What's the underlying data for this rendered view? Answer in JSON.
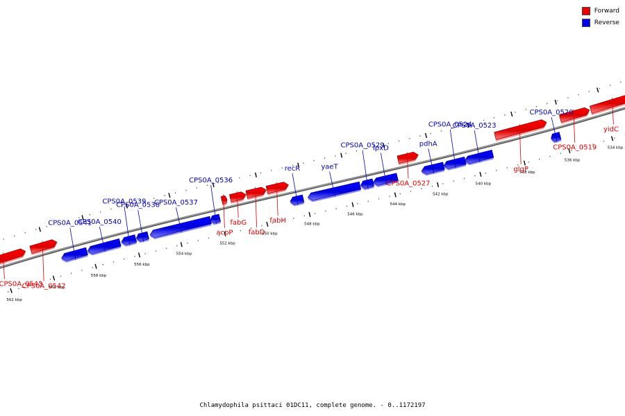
{
  "legend": {
    "forward_label": "Forward",
    "reverse_label": "Reverse",
    "forward_color": "#ee0000",
    "reverse_color": "#0000ee"
  },
  "caption": "Chlamydophila psittaci 01DC11, complete genome. - 0..1172197",
  "ticks": [
    {
      "label": "534 kbp",
      "t": 0.948
    },
    {
      "label": "536 kbp",
      "t": 0.883
    },
    {
      "label": "538 kbp",
      "t": 0.815
    },
    {
      "label": "540 kbp",
      "t": 0.748
    },
    {
      "label": "542 kbp",
      "t": 0.683
    },
    {
      "label": "544 kbp",
      "t": 0.618
    },
    {
      "label": "546 kbp",
      "t": 0.553
    },
    {
      "label": "548 kbp",
      "t": 0.487
    },
    {
      "label": "550 kbp",
      "t": 0.422
    },
    {
      "label": "552 kbp",
      "t": 0.357
    },
    {
      "label": "554 kbp",
      "t": 0.29
    },
    {
      "label": "556 kbp",
      "t": 0.225
    },
    {
      "label": "558 kbp",
      "t": 0.158
    },
    {
      "label": "560 kbp",
      "t": 0.093
    },
    {
      "label": "562 kbp",
      "t": 0.027
    }
  ],
  "genes": {
    "reverse": [
      {
        "name": "CPS0A_0520",
        "t0": 0.862,
        "t1": 0.876
      },
      {
        "name": "CPS0A_0523",
        "t0": 0.73,
        "t1": 0.773
      },
      {
        "name": "CPS0A_0524",
        "t0": 0.698,
        "t1": 0.731
      },
      {
        "name": "pdhA",
        "t0": 0.664,
        "t1": 0.698
      },
      {
        "name": "lpxD",
        "t0": 0.59,
        "t1": 0.627
      },
      {
        "name": "CPS0A_0529",
        "t0": 0.571,
        "t1": 0.59
      },
      {
        "name": "yaeT",
        "t0": 0.49,
        "t1": 0.57
      },
      {
        "name": "recR",
        "t0": 0.463,
        "t1": 0.483
      },
      {
        "name": "CPS0A_0536",
        "t0": 0.341,
        "t1": 0.355
      },
      {
        "name": "CPS0A_0537",
        "t0": 0.248,
        "t1": 0.341
      },
      {
        "name": "CPS0A_0538",
        "t0": 0.227,
        "t1": 0.245
      },
      {
        "name": "CPS0A_0539",
        "t0": 0.204,
        "t1": 0.226
      },
      {
        "name": "CPS0A_0540",
        "t0": 0.152,
        "t1": 0.202
      },
      {
        "name": "CPS0A_0541",
        "t0": 0.112,
        "t1": 0.151
      }
    ],
    "forward": [
      {
        "name": "yidC",
        "t0": 0.93,
        "t1": 1.01
      },
      {
        "name": "CPS0A_0519",
        "t0": 0.883,
        "t1": 0.928
      },
      {
        "name": "glgP",
        "t0": 0.783,
        "t1": 0.862
      },
      {
        "name": "CPS0A_0527",
        "t0": 0.634,
        "t1": 0.665
      },
      {
        "name": "fabH",
        "t0": 0.433,
        "t1": 0.466
      },
      {
        "name": "fabD",
        "t0": 0.402,
        "t1": 0.432
      },
      {
        "name": "fabG",
        "t0": 0.377,
        "t1": 0.401
      },
      {
        "name": "acpP",
        "t0": 0.364,
        "t1": 0.372
      },
      {
        "name": "CPS0A_0542",
        "t0": 0.072,
        "t1": 0.112
      },
      {
        "name": "CPS0A_0543",
        "t0": -0.01,
        "t1": 0.064
      }
    ]
  }
}
